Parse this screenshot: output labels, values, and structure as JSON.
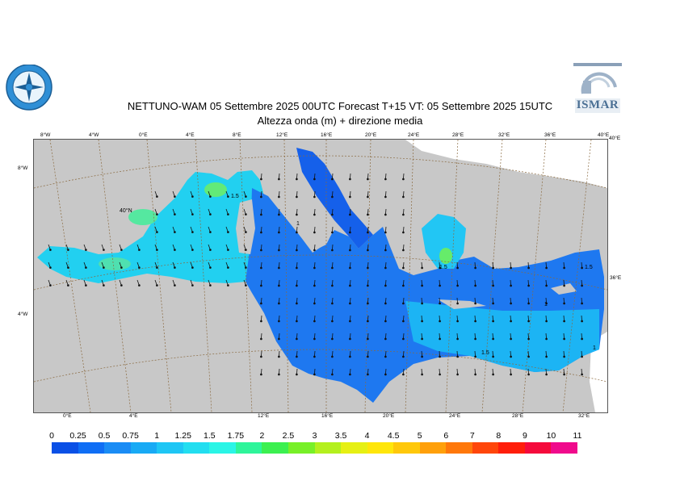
{
  "header": {
    "title": "NETTUNO-WAM  05 Settembre 2025 00UTC Forecast T+15 VT: 05 Settembre 2025 15UTC",
    "subtitle": "Altezza onda (m) + direzione media"
  },
  "logos": {
    "right": "ISMAR"
  },
  "map": {
    "top_ticks": [
      "8°W",
      "4°W",
      "0°E",
      "4°E",
      "8°E",
      "12°E",
      "16°E",
      "20°E",
      "24°E",
      "28°E",
      "32°E",
      "36°E",
      "40°E"
    ],
    "bottom_ticks": [
      "0°E",
      "4°E",
      "12°E",
      "16°E",
      "20°E",
      "24°E",
      "28°E",
      "32°E"
    ],
    "left_ticks": [
      "8°W",
      "4°W"
    ],
    "right_ticks": [
      "40°E",
      "36°E"
    ],
    "inner_label": "40°N",
    "contour_labels": [
      "1.5",
      "1.5",
      "1",
      "1",
      "1.5",
      "1.5",
      "1"
    ],
    "colors": {
      "land": "#c8c8c8",
      "outside": "#ffffff",
      "grid": "#8a6a40"
    }
  },
  "colorbar": {
    "labels": [
      "0",
      "0.25",
      "0.5",
      "0.75",
      "1",
      "1.25",
      "1.5",
      "1.75",
      "2",
      "2.5",
      "3",
      "3.5",
      "4",
      "4.5",
      "5",
      "6",
      "7",
      "8",
      "9",
      "10",
      "11"
    ],
    "colors": [
      "#0a50e6",
      "#0f6ef5",
      "#1a8cf5",
      "#18aaf5",
      "#1ec6f5",
      "#22def0",
      "#2af5e6",
      "#2ef59a",
      "#3cf050",
      "#78f028",
      "#b4f01e",
      "#e6f014",
      "#ffe60a",
      "#ffc80a",
      "#ffa00a",
      "#ff780a",
      "#ff460a",
      "#ff1e0a",
      "#f50a3c",
      "#f00a8c"
    ]
  }
}
